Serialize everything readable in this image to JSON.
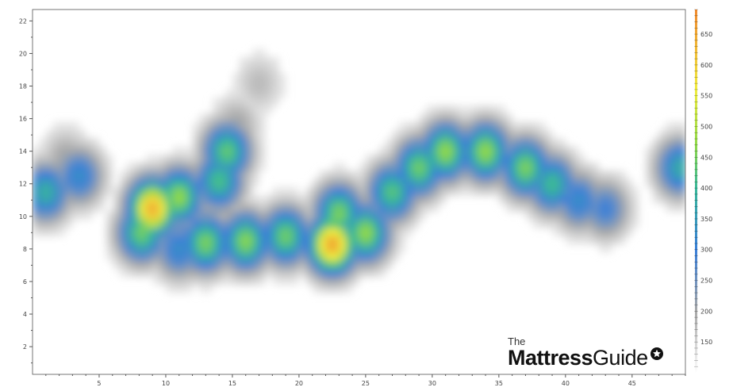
{
  "chart_data": {
    "type": "heatmap",
    "title": "",
    "xlabel": "",
    "ylabel": "",
    "xlim": [
      0,
      49
    ],
    "ylim": [
      0.3,
      22.7
    ],
    "x_ticks": [
      5,
      10,
      15,
      20,
      25,
      30,
      35,
      40,
      45
    ],
    "y_ticks": [
      2,
      4,
      6,
      8,
      10,
      12,
      14,
      16,
      18,
      20,
      22
    ],
    "colorbar": {
      "range": [
        100,
        690
      ],
      "ticks": [
        150,
        200,
        250,
        300,
        350,
        400,
        450,
        500,
        550,
        600,
        650
      ],
      "colors": [
        [
          100,
          "#ffffff"
        ],
        [
          200,
          "#a8a8a8"
        ],
        [
          300,
          "#3a7fd8"
        ],
        [
          400,
          "#39b89a"
        ],
        [
          470,
          "#8fd84a"
        ],
        [
          560,
          "#f0ec40"
        ],
        [
          690,
          "#f08a30"
        ]
      ]
    },
    "grid": false,
    "hotspots": [
      {
        "x": 1,
        "y": 11.5,
        "value": 390
      },
      {
        "x": 3.5,
        "y": 12.5,
        "value": 330
      },
      {
        "x": 2.5,
        "y": 13.6,
        "value": 210
      },
      {
        "x": 9,
        "y": 10.5,
        "value": 650
      },
      {
        "x": 8.2,
        "y": 9,
        "value": 450
      },
      {
        "x": 11,
        "y": 11.2,
        "value": 480
      },
      {
        "x": 11,
        "y": 8,
        "value": 330
      },
      {
        "x": 14.6,
        "y": 14,
        "value": 440
      },
      {
        "x": 14,
        "y": 12.2,
        "value": 420
      },
      {
        "x": 15.3,
        "y": 15.6,
        "value": 210
      },
      {
        "x": 13,
        "y": 8.4,
        "value": 460
      },
      {
        "x": 16,
        "y": 8.5,
        "value": 470
      },
      {
        "x": 19,
        "y": 8.8,
        "value": 450
      },
      {
        "x": 22.5,
        "y": 8.3,
        "value": 660
      },
      {
        "x": 25,
        "y": 9,
        "value": 480
      },
      {
        "x": 23,
        "y": 10.2,
        "value": 460
      },
      {
        "x": 27,
        "y": 11.5,
        "value": 430
      },
      {
        "x": 29,
        "y": 13,
        "value": 450
      },
      {
        "x": 31,
        "y": 14,
        "value": 480
      },
      {
        "x": 34,
        "y": 14,
        "value": 480
      },
      {
        "x": 37,
        "y": 13,
        "value": 460
      },
      {
        "x": 39,
        "y": 12,
        "value": 410
      },
      {
        "x": 41,
        "y": 11,
        "value": 330
      },
      {
        "x": 43,
        "y": 10.5,
        "value": 300
      },
      {
        "x": 17,
        "y": 18.2,
        "value": 180
      },
      {
        "x": 48.6,
        "y": 13,
        "value": 380
      }
    ]
  },
  "logo": {
    "the": "The",
    "brand_bold": "Mattress",
    "brand_light": "Guide"
  }
}
